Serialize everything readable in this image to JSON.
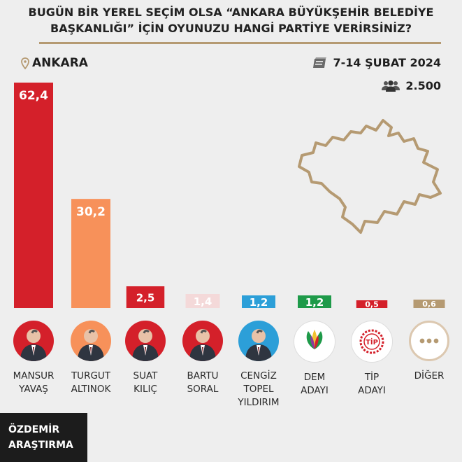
{
  "header": {
    "title_line1": "BUGÜN BİR YEREL SEÇİM OLSA “ANKARA BÜYÜKŞEHİR BELEDİYE",
    "title_line2": "BAŞKANLIĞI” İÇİN OYUNUZU HANGİ PARTİYE VERİRSİNİZ?",
    "location": "ANKARA",
    "date": "7-14 ŞUBAT 2024",
    "sample_size": "2.500",
    "rule_color": "#b59a72"
  },
  "chart_data": {
    "type": "bar",
    "categories": [
      "MANSUR YAVAŞ",
      "TURGUT ALTINOK",
      "SUAT KILIÇ",
      "BARTU SORAL",
      "CENGİZ TOPEL YILDIRIM",
      "DEM ADAYI",
      "TİP ADAYI",
      "DİĞER"
    ],
    "values": [
      62.4,
      30.2,
      2.5,
      1.4,
      1.2,
      1.2,
      0.5,
      0.6
    ],
    "labels": [
      "62,4",
      "30,2",
      "2,5",
      "1,4",
      "1,2",
      "1,2",
      "0,5",
      "0,6"
    ],
    "colors": [
      "#d4202a",
      "#f7915a",
      "#d4202a",
      "#f4d9d9",
      "#2c9fd8",
      "#1e9a49",
      "#d4202a",
      "#b59a72"
    ],
    "ylim": [
      0,
      62.4
    ]
  },
  "candidates": [
    {
      "line1": "MANSUR",
      "line2": "YAVAŞ",
      "line3": "",
      "avatar_icon": "person-icon",
      "avatar_color": "#d4202a"
    },
    {
      "line1": "TURGUT",
      "line2": "ALTINOK",
      "line3": "",
      "avatar_icon": "person-icon",
      "avatar_color": "#f7915a"
    },
    {
      "line1": "SUAT",
      "line2": "KILIÇ",
      "line3": "",
      "avatar_icon": "person-icon",
      "avatar_color": "#d4202a"
    },
    {
      "line1": "BARTU",
      "line2": "SORAL",
      "line3": "",
      "avatar_icon": "person-icon",
      "avatar_color": "#d4202a"
    },
    {
      "line1": "CENGİZ",
      "line2": "TOPEL",
      "line3": "YILDIRIM",
      "avatar_icon": "person-icon",
      "avatar_color": "#2c9fd8"
    },
    {
      "line1": "DEM",
      "line2": "ADAYI",
      "line3": "",
      "avatar_icon": "dem-logo-icon",
      "avatar_color": "#ffffff"
    },
    {
      "line1": "TİP",
      "line2": "ADAYI",
      "line3": "",
      "avatar_icon": "tip-logo-icon",
      "avatar_color": "#ffffff"
    },
    {
      "line1": "DİĞER",
      "line2": "",
      "line3": "",
      "avatar_icon": "dots-icon",
      "avatar_color": "#ffffff"
    }
  ],
  "logos": {
    "tip_text": "TİP"
  },
  "brand": {
    "line1": "ÖZDEMİR",
    "line2": "ARAŞTIRMA"
  }
}
